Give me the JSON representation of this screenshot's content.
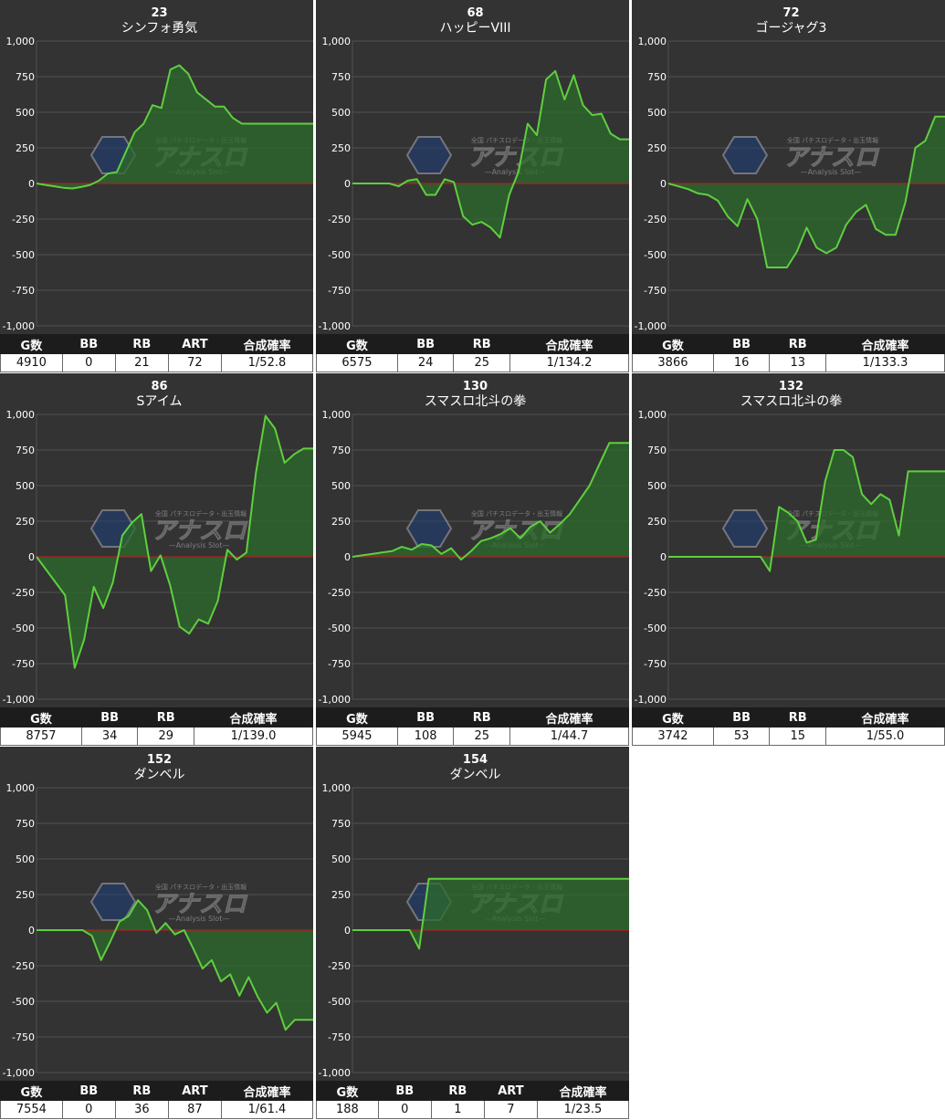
{
  "colors": {
    "background": "#333333",
    "grid": "#505050",
    "axis_text": "#ffffff",
    "line": "#5fcf3f",
    "fill": "#2c6b2c",
    "zero_line": "#b02020",
    "table_header_bg": "#1c1c1c"
  },
  "watermark": {
    "main": "アナスロ",
    "sub": "—Analysis Slot—",
    "tag": "全国 パチスロデータ・出玉情報"
  },
  "chart_data": [
    {
      "type": "area",
      "machine_no": "23",
      "name": "シンフォ勇気",
      "ylim": [
        -1000,
        1000
      ],
      "yticks": [
        "1,000",
        "750",
        "500",
        "250",
        "0",
        "-250",
        "-500",
        "-750",
        "-1,000"
      ],
      "y": [
        0,
        -10,
        -20,
        -30,
        -35,
        -25,
        -10,
        20,
        70,
        80,
        220,
        360,
        420,
        550,
        530,
        800,
        830,
        770,
        640,
        590,
        540,
        540,
        460,
        420,
        420,
        420,
        420,
        420,
        420,
        420,
        420,
        420
      ],
      "table": {
        "headers": [
          "G数",
          "BB",
          "RB",
          "ART",
          "合成確率"
        ],
        "values": [
          "4910",
          "0",
          "21",
          "72",
          "1/52.8"
        ]
      }
    },
    {
      "type": "area",
      "machine_no": "68",
      "name": "ハッピーVIII",
      "ylim": [
        -1000,
        1000
      ],
      "yticks": [
        "1,000",
        "750",
        "500",
        "250",
        "0",
        "-250",
        "-500",
        "-750",
        "-1,000"
      ],
      "y": [
        0,
        0,
        0,
        0,
        0,
        -20,
        20,
        30,
        -80,
        -80,
        30,
        10,
        -230,
        -290,
        -270,
        -310,
        -380,
        -80,
        80,
        420,
        340,
        730,
        790,
        590,
        760,
        550,
        480,
        490,
        350,
        310,
        310
      ],
      "table": {
        "headers": [
          "G数",
          "BB",
          "RB",
          "合成確率"
        ],
        "values": [
          "6575",
          "24",
          "25",
          "1/134.2"
        ]
      }
    },
    {
      "type": "area",
      "machine_no": "72",
      "name": "ゴージャグ3",
      "ylim": [
        -1000,
        1000
      ],
      "yticks": [
        "1,000",
        "750",
        "500",
        "250",
        "0",
        "-250",
        "-500",
        "-750",
        "-1,000"
      ],
      "y": [
        0,
        -20,
        -40,
        -70,
        -80,
        -120,
        -230,
        -300,
        -110,
        -250,
        -590,
        -590,
        -590,
        -480,
        -310,
        -450,
        -490,
        -450,
        -290,
        -200,
        -150,
        -320,
        -360,
        -360,
        -130,
        250,
        300,
        470,
        470
      ],
      "table": {
        "headers": [
          "G数",
          "BB",
          "RB",
          "合成確率"
        ],
        "values": [
          "3866",
          "16",
          "13",
          "1/133.3"
        ]
      }
    },
    {
      "type": "area",
      "machine_no": "86",
      "name": "Sアイム",
      "ylim": [
        -1000,
        1000
      ],
      "yticks": [
        "1,000",
        "750",
        "500",
        "250",
        "0",
        "-250",
        "-500",
        "-750",
        "-1,000"
      ],
      "y": [
        0,
        -90,
        -180,
        -270,
        -780,
        -580,
        -210,
        -360,
        -180,
        150,
        240,
        300,
        -100,
        10,
        -200,
        -490,
        -540,
        -440,
        -470,
        -310,
        50,
        -20,
        30,
        590,
        990,
        900,
        660,
        720,
        760,
        760
      ],
      "table": {
        "headers": [
          "G数",
          "BB",
          "RB",
          "合成確率"
        ],
        "values": [
          "8757",
          "34",
          "29",
          "1/139.0"
        ]
      }
    },
    {
      "type": "area",
      "machine_no": "130",
      "name": "スマスロ北斗の拳",
      "ylim": [
        -1000,
        1000
      ],
      "yticks": [
        "1,000",
        "750",
        "500",
        "250",
        "0",
        "-250",
        "-500",
        "-750",
        "-1,000"
      ],
      "y": [
        0,
        10,
        20,
        30,
        40,
        70,
        50,
        90,
        80,
        20,
        60,
        -20,
        40,
        110,
        130,
        160,
        200,
        130,
        210,
        250,
        170,
        230,
        300,
        400,
        500,
        650,
        800,
        800,
        800
      ],
      "table": {
        "headers": [
          "G数",
          "BB",
          "RB",
          "合成確率"
        ],
        "values": [
          "5945",
          "108",
          "25",
          "1/44.7"
        ]
      }
    },
    {
      "type": "area",
      "machine_no": "132",
      "name": "スマスロ北斗の拳",
      "ylim": [
        -1000,
        1000
      ],
      "yticks": [
        "1,000",
        "750",
        "500",
        "250",
        "0",
        "-250",
        "-500",
        "-750",
        "-1,000"
      ],
      "y": [
        0,
        0,
        0,
        0,
        0,
        0,
        0,
        0,
        0,
        0,
        0,
        -100,
        350,
        310,
        250,
        100,
        120,
        530,
        750,
        750,
        700,
        440,
        370,
        440,
        400,
        150,
        600,
        600,
        600,
        600,
        600
      ],
      "table": {
        "headers": [
          "G数",
          "BB",
          "RB",
          "合成確率"
        ],
        "values": [
          "3742",
          "53",
          "15",
          "1/55.0"
        ]
      }
    },
    {
      "type": "area",
      "machine_no": "152",
      "name": "ダンベル",
      "ylim": [
        -1000,
        1000
      ],
      "yticks": [
        "1,000",
        "750",
        "500",
        "250",
        "0",
        "-250",
        "-500",
        "-750",
        "-1,000"
      ],
      "y": [
        0,
        0,
        0,
        0,
        0,
        0,
        -40,
        -210,
        -80,
        60,
        100,
        210,
        140,
        -20,
        50,
        -30,
        0,
        -130,
        -270,
        -210,
        -360,
        -310,
        -460,
        -330,
        -470,
        -580,
        -510,
        -700,
        -630,
        -630,
        -630
      ],
      "table": {
        "headers": [
          "G数",
          "BB",
          "RB",
          "ART",
          "合成確率"
        ],
        "values": [
          "7554",
          "0",
          "36",
          "87",
          "1/61.4"
        ]
      }
    },
    {
      "type": "area",
      "machine_no": "154",
      "name": "ダンベル",
      "ylim": [
        -1000,
        1000
      ],
      "yticks": [
        "1,000",
        "750",
        "500",
        "250",
        "0",
        "-250",
        "-500",
        "-750",
        "-1,000"
      ],
      "y": [
        0,
        0,
        0,
        0,
        0,
        0,
        0,
        -130,
        360,
        360,
        360,
        360,
        360,
        360,
        360,
        360,
        360,
        360,
        360,
        360,
        360,
        360,
        360,
        360,
        360,
        360,
        360,
        360,
        360,
        360
      ],
      "table": {
        "headers": [
          "G数",
          "BB",
          "RB",
          "ART",
          "合成確率"
        ],
        "values": [
          "188",
          "0",
          "1",
          "7",
          "1/23.5"
        ]
      }
    }
  ]
}
